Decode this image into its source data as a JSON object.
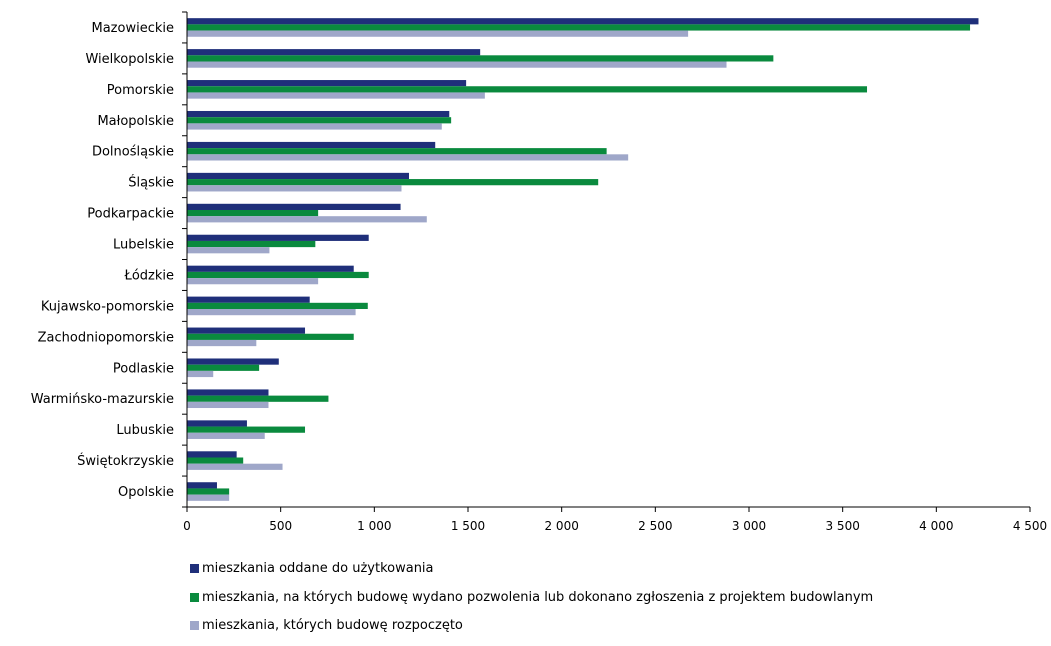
{
  "chart_data": {
    "type": "bar",
    "orientation": "horizontal",
    "categories": [
      "Mazowieckie",
      "Wielkopolskie",
      "Pomorskie",
      "Małopolskie",
      "Dolnośląskie",
      "Śląskie",
      "Podkarpackie",
      "Lubelskie",
      "Łódzkie",
      "Kujawsko-pomorskie",
      "Zachodniopomorskie",
      "Podlaskie",
      "Warmińsko-mazurskie",
      "Lubuskie",
      "Świętokrzyskie",
      "Opolskie"
    ],
    "series": [
      {
        "name": "mieszkania oddane do użytkowania",
        "color": "#1f2f7a",
        "values": [
          4225,
          1565,
          1490,
          1400,
          1325,
          1185,
          1140,
          970,
          890,
          655,
          630,
          490,
          435,
          320,
          265,
          160
        ]
      },
      {
        "name": "mieszkania, na których budowę wydano pozwolenia lub dokonano zgłoszenia z projektem budowlanym",
        "color": "#0a8a3e",
        "values": [
          4180,
          3130,
          3630,
          1410,
          2240,
          2195,
          700,
          685,
          970,
          965,
          890,
          385,
          755,
          630,
          300,
          225
        ]
      },
      {
        "name": "mieszkania, których budowę rozpoczęto",
        "color": "#9fa7c9",
        "values": [
          2675,
          2880,
          1590,
          1360,
          2355,
          1145,
          1280,
          440,
          700,
          900,
          370,
          140,
          435,
          415,
          510,
          225
        ]
      }
    ],
    "xlim": [
      0,
      4500
    ],
    "xticks": [
      0,
      500,
      1000,
      1500,
      2000,
      2500,
      3000,
      3500,
      4000,
      4500
    ],
    "xtick_labels": [
      "0",
      "500",
      "1 000",
      "1 500",
      "2 000",
      "2 500",
      "3 000",
      "3 500",
      "4 000",
      "4 500"
    ],
    "title": "",
    "xlabel": "",
    "ylabel": "",
    "grid": false,
    "legend_position": "bottom"
  }
}
